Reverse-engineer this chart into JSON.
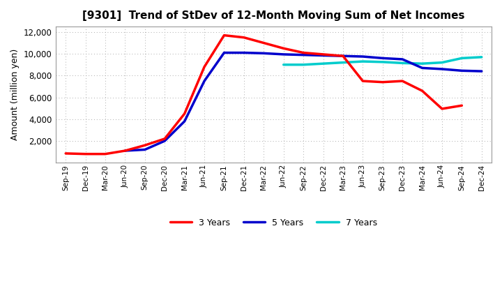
{
  "title": "[9301]  Trend of StDev of 12-Month Moving Sum of Net Incomes",
  "ylabel": "Amount (million yen)",
  "background_color": "#ffffff",
  "plot_bg_color": "#f0f0f0",
  "grid_color": "#aaaaaa",
  "x_labels": [
    "Sep-19",
    "Dec-19",
    "Mar-20",
    "Jun-20",
    "Sep-20",
    "Dec-20",
    "Mar-21",
    "Jun-21",
    "Sep-21",
    "Dec-21",
    "Mar-22",
    "Jun-22",
    "Sep-22",
    "Dec-22",
    "Mar-23",
    "Jun-23",
    "Sep-23",
    "Dec-23",
    "Mar-24",
    "Jun-24",
    "Sep-24",
    "Dec-24"
  ],
  "ylim": [
    0,
    12500
  ],
  "yticks": [
    2000,
    4000,
    6000,
    8000,
    10000,
    12000
  ],
  "series": {
    "3 Years": {
      "color": "#ff0000",
      "values": [
        850,
        800,
        800,
        1100,
        1600,
        2200,
        4500,
        8800,
        11700,
        11500,
        11000,
        10500,
        10100,
        9950,
        9800,
        7500,
        7400,
        7500,
        6600,
        4950,
        5250,
        null
      ]
    },
    "5 Years": {
      "color": "#0000cc",
      "values": [
        null,
        null,
        null,
        1100,
        1200,
        2000,
        3800,
        7500,
        10100,
        10100,
        10050,
        9950,
        9900,
        9850,
        9800,
        9750,
        9600,
        9500,
        8700,
        8600,
        8450,
        8400
      ]
    },
    "7 Years": {
      "color": "#00cccc",
      "values": [
        null,
        null,
        null,
        null,
        null,
        null,
        null,
        null,
        null,
        null,
        null,
        9000,
        9000,
        9100,
        9200,
        9300,
        9250,
        9150,
        9100,
        9200,
        9600,
        9700
      ]
    },
    "10 Years": {
      "color": "#006600",
      "values": [
        null,
        null,
        null,
        null,
        null,
        null,
        null,
        null,
        null,
        null,
        null,
        null,
        null,
        null,
        null,
        null,
        null,
        null,
        null,
        null,
        null,
        null
      ]
    }
  }
}
